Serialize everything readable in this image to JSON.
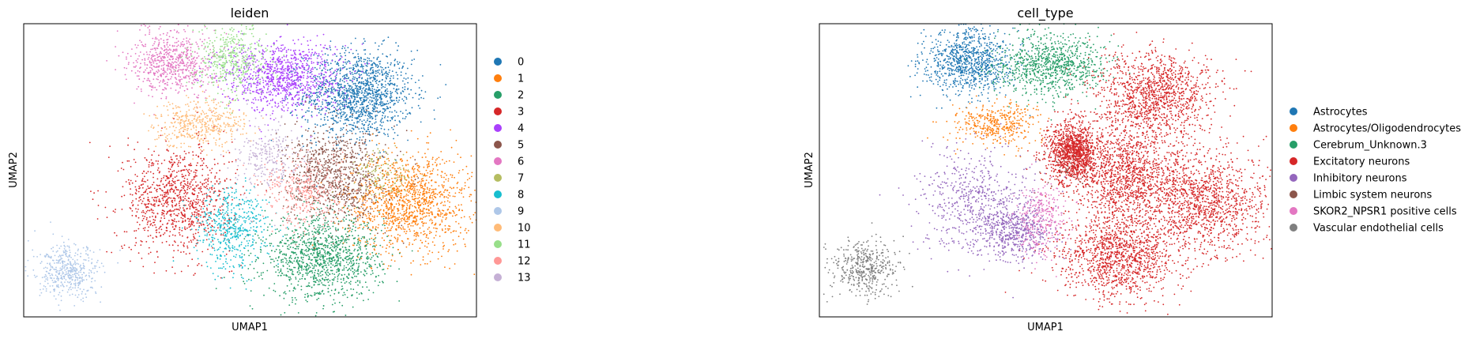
{
  "chart_data": [
    {
      "type": "scatter",
      "title": "leiden",
      "xlabel": "UMAP1",
      "ylabel": "UMAP2",
      "legend_position": "right",
      "grid": false,
      "xticks": [],
      "yticks": [],
      "xlim": [
        0,
        100
      ],
      "ylim": [
        0,
        100
      ],
      "series": [
        {
          "name": "0",
          "color": "#1f77b4",
          "count": 1400,
          "clusters": [
            [
              74,
              76,
              6,
              7.5
            ]
          ]
        },
        {
          "name": "1",
          "color": "#ff7f0e",
          "count": 1300,
          "clusters": [
            [
              85,
              39,
              7,
              8.5
            ]
          ]
        },
        {
          "name": "2",
          "color": "#279e68",
          "count": 1200,
          "clusters": [
            [
              66,
              20,
              6.5,
              7
            ]
          ]
        },
        {
          "name": "3",
          "color": "#d62728",
          "count": 1000,
          "clusters": [
            [
              34,
              40,
              6,
              9
            ]
          ]
        },
        {
          "name": "4",
          "color": "#aa40fc",
          "count": 1000,
          "clusters": [
            [
              57,
              82,
              6.5,
              6
            ]
          ]
        },
        {
          "name": "5",
          "color": "#8c564b",
          "count": 900,
          "clusters": [
            [
              69,
              48,
              5.5,
              8
            ]
          ]
        },
        {
          "name": "6",
          "color": "#e377c2",
          "count": 650,
          "clusters": [
            [
              33,
              87,
              4.5,
              5.5
            ]
          ]
        },
        {
          "name": "7",
          "color": "#b5bd61",
          "count": 120,
          "clusters": [
            [
              79,
              49,
              3.5,
              4
            ]
          ]
        },
        {
          "name": "8",
          "color": "#17becf",
          "count": 500,
          "clusters": [
            [
              46,
              30,
              4,
              7
            ]
          ]
        },
        {
          "name": "9",
          "color": "#aec7e8",
          "count": 450,
          "clusters": [
            [
              10,
              15,
              3.5,
              4.5
            ]
          ]
        },
        {
          "name": "10",
          "color": "#ffbb78",
          "count": 450,
          "clusters": [
            [
              39,
              66,
              5,
              4
            ]
          ]
        },
        {
          "name": "11",
          "color": "#98df8a",
          "count": 450,
          "clusters": [
            [
              46,
              88,
              4,
              6
            ]
          ]
        },
        {
          "name": "12",
          "color": "#ff9896",
          "count": 350,
          "clusters": [
            [
              62,
              43,
              4.5,
              6
            ]
          ]
        },
        {
          "name": "13",
          "color": "#c5b0d5",
          "count": 250,
          "clusters": [
            [
              54,
              55,
              3.5,
              6
            ]
          ]
        }
      ]
    },
    {
      "type": "scatter",
      "title": "cell_type",
      "xlabel": "UMAP1",
      "ylabel": "UMAP2",
      "legend_position": "right",
      "grid": false,
      "xticks": [],
      "yticks": [],
      "xlim": [
        0,
        100
      ],
      "ylim": [
        0,
        100
      ],
      "series": [
        {
          "name": "Astrocytes",
          "color": "#1f77b4",
          "count": 900,
          "clusters": [
            [
              33,
              87,
              5,
              5.5
            ]
          ]
        },
        {
          "name": "Astrocytes/Oligodendrocytes",
          "color": "#ff7f0e",
          "count": 400,
          "clusters": [
            [
              39,
              66,
              4.5,
              3.5
            ]
          ]
        },
        {
          "name": "Cerebrum_Unknown.3",
          "color": "#279e68",
          "count": 900,
          "clusters": [
            [
              51,
              86,
              6,
              5.5
            ]
          ]
        },
        {
          "name": "Excitatory neurons",
          "color": "#d62728",
          "count": 6000,
          "clusters": [
            [
              74,
              76,
              6.5,
              7.5
            ],
            [
              85,
              39,
              7,
              8.5
            ],
            [
              66,
              20,
              6.5,
              7
            ],
            [
              68,
              48,
              6,
              8
            ],
            [
              56,
              56,
              3,
              5
            ]
          ]
        },
        {
          "name": "Inhibitory neurons",
          "color": "#9467bd",
          "count": 1100,
          "clusters": [
            [
              34,
              40,
              6,
              9
            ],
            [
              43,
              29,
              4,
              5
            ]
          ]
        },
        {
          "name": "Limbic system neurons",
          "color": "#8c564b",
          "count": 40,
          "clusters": [
            [
              55,
              50,
              3,
              4
            ]
          ]
        },
        {
          "name": "SKOR2_NPSR1 positive cells",
          "color": "#e377c2",
          "count": 300,
          "clusters": [
            [
              49,
              33,
              3,
              6
            ]
          ]
        },
        {
          "name": "Vascular endothelial cells",
          "color": "#7f7f7f",
          "count": 450,
          "clusters": [
            [
              10,
              17,
              3.5,
              4.5
            ]
          ]
        }
      ]
    }
  ],
  "panels": [
    {
      "title": "leiden",
      "xlabel": "UMAP1",
      "ylabel": "UMAP2"
    },
    {
      "title": "cell_type",
      "xlabel": "UMAP1",
      "ylabel": "UMAP2"
    }
  ]
}
